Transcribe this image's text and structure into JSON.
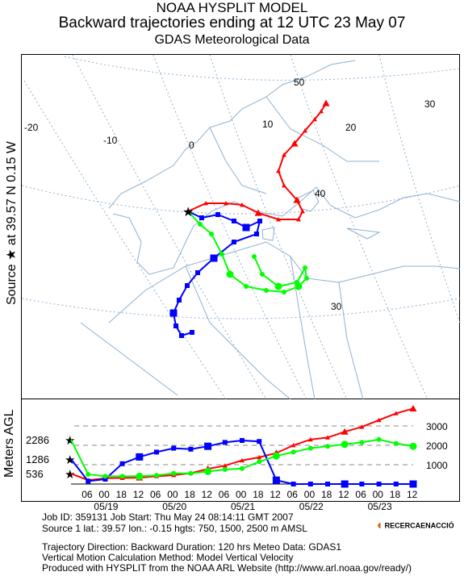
{
  "header": {
    "title": "NOAA HYSPLIT MODEL",
    "subtitle": "Backward trajectories ending at 12 UTC 23 May 07",
    "data_source": "GDAS Meteorological Data"
  },
  "side_labels": {
    "source": "Source ★ at  39.57 N  0.15 W",
    "yaxis": "Meters AGL"
  },
  "colors": {
    "red": "#ff0000",
    "blue": "#0000ff",
    "green": "#00ff00",
    "map_lines": "#8fb0d0",
    "grid": "#000000"
  },
  "map": {
    "longitude_labels": [
      "-20",
      "-10",
      "0",
      "10",
      "20",
      "30"
    ],
    "latitude_labels": [
      "50",
      "40",
      "30"
    ],
    "source_marker": "star-icon"
  },
  "chart_data": {
    "type": "line",
    "title": "",
    "ylabel": "Meters AGL",
    "ytick_labels": [
      "1000",
      "2000",
      "3000"
    ],
    "ylim": [
      0,
      3900
    ],
    "x_hours_back": [
      120,
      114,
      108,
      102,
      96,
      90,
      84,
      78,
      72,
      66,
      60,
      54,
      48,
      42,
      36,
      30,
      24,
      18,
      12,
      6,
      0
    ],
    "xtick_labels": [
      "12",
      "06",
      "00",
      "18",
      "12",
      "06",
      "00",
      "18",
      "12",
      "06",
      "00",
      "18",
      "12",
      "06",
      "00",
      "18",
      "12",
      "06",
      "00",
      "18",
      "12"
    ],
    "date_labels": [
      "05/19",
      "05/20",
      "05/21",
      "05/22",
      "05/23"
    ],
    "start_heights": [
      {
        "label": "2286",
        "value": 2286
      },
      {
        "label": "1286",
        "value": 1286
      },
      {
        "label": "536",
        "value": 536
      }
    ],
    "series": [
      {
        "color": "red",
        "start_height": 536,
        "values": [
          3900,
          3650,
          3300,
          2950,
          2700,
          2400,
          2300,
          2000,
          1600,
          1380,
          1220,
          950,
          780,
          560,
          460,
          400,
          330,
          310,
          300,
          200,
          536
        ]
      },
      {
        "color": "blue",
        "start_height": 1286,
        "values": [
          0,
          0,
          0,
          0,
          0,
          0,
          0,
          0,
          200,
          2200,
          2250,
          2150,
          1950,
          1800,
          1850,
          1650,
          1400,
          1050,
          250,
          150,
          1286
        ]
      },
      {
        "color": "green",
        "start_height": 2286,
        "values": [
          1950,
          2100,
          2300,
          2150,
          2050,
          1950,
          1850,
          1650,
          1450,
          1150,
          800,
          750,
          650,
          550,
          550,
          450,
          400,
          400,
          400,
          500,
          2286
        ]
      }
    ]
  },
  "footer": {
    "line1": "Job ID: 359131        Job Start: Thu May 24 08:14:11 GMT 2007",
    "line2": "Source 1 lat.: 39.57   lon.: -0.15   hgts: 750, 1500, 2500 m AMSL",
    "line3": "Trajectory Direction: Backward      Duration: 120 hrs      Meteo Data: GDAS1",
    "line4": "Vertical Motion Calculation Method: Model Vertical Velocity",
    "line5": "Produced with HYSPLIT from the NOAA ARL Website (http://www.arl.noaa.gov/ready/)",
    "logo_text": "RECERCAENACCIÓ"
  }
}
